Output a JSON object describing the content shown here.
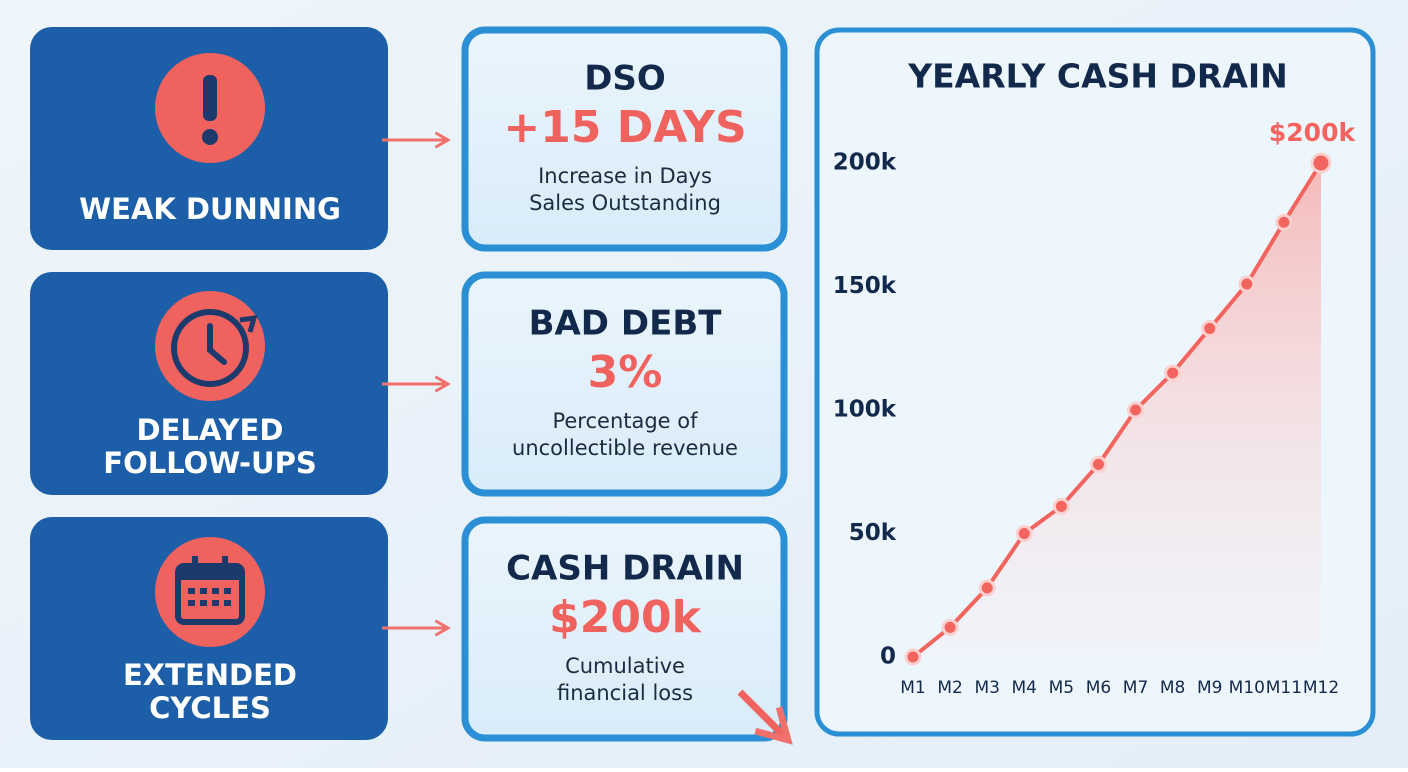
{
  "causes": [
    {
      "lines": [
        "WEAK DUNNING"
      ]
    },
    {
      "lines": [
        "DELAYED",
        "FOLLOW-UPS"
      ]
    },
    {
      "lines": [
        "EXTENDED",
        "CYCLES"
      ]
    }
  ],
  "metrics": [
    {
      "title": "DSO",
      "value": "+15 DAYS",
      "description": [
        "Increase in Days",
        "Sales Outstanding"
      ]
    },
    {
      "title": "BAD DEBT",
      "value": "3%",
      "description": [
        "Percentage of",
        "uncollectible revenue"
      ]
    },
    {
      "title": "CASH DRAIN",
      "value": "$200k",
      "description": [
        "Cumulative",
        "financial loss"
      ]
    }
  ],
  "chart_data": {
    "type": "line",
    "title": "YEARLY CASH DRAIN",
    "categories": [
      "M1",
      "M2",
      "M3",
      "M4",
      "M5",
      "M6",
      "M7",
      "M8",
      "M9",
      "M10",
      "M11",
      "M12"
    ],
    "series": [
      {
        "name": "Cash drain",
        "color": "#f4645f",
        "values": [
          0,
          12000,
          28000,
          50000,
          61000,
          78000,
          100000,
          115000,
          133000,
          151000,
          176000,
          200000
        ],
        "value_labels": [
          null,
          null,
          null,
          null,
          null,
          null,
          null,
          null,
          null,
          null,
          null,
          "$200k"
        ]
      }
    ],
    "ylim": [
      0,
      200000
    ],
    "yticks": [
      {
        "value": 0,
        "label": "0"
      },
      {
        "value": 50000,
        "label": "50k"
      },
      {
        "value": 100000,
        "label": "100k"
      },
      {
        "value": 150000,
        "label": "150k"
      },
      {
        "value": 200000,
        "label": "200k"
      }
    ]
  }
}
